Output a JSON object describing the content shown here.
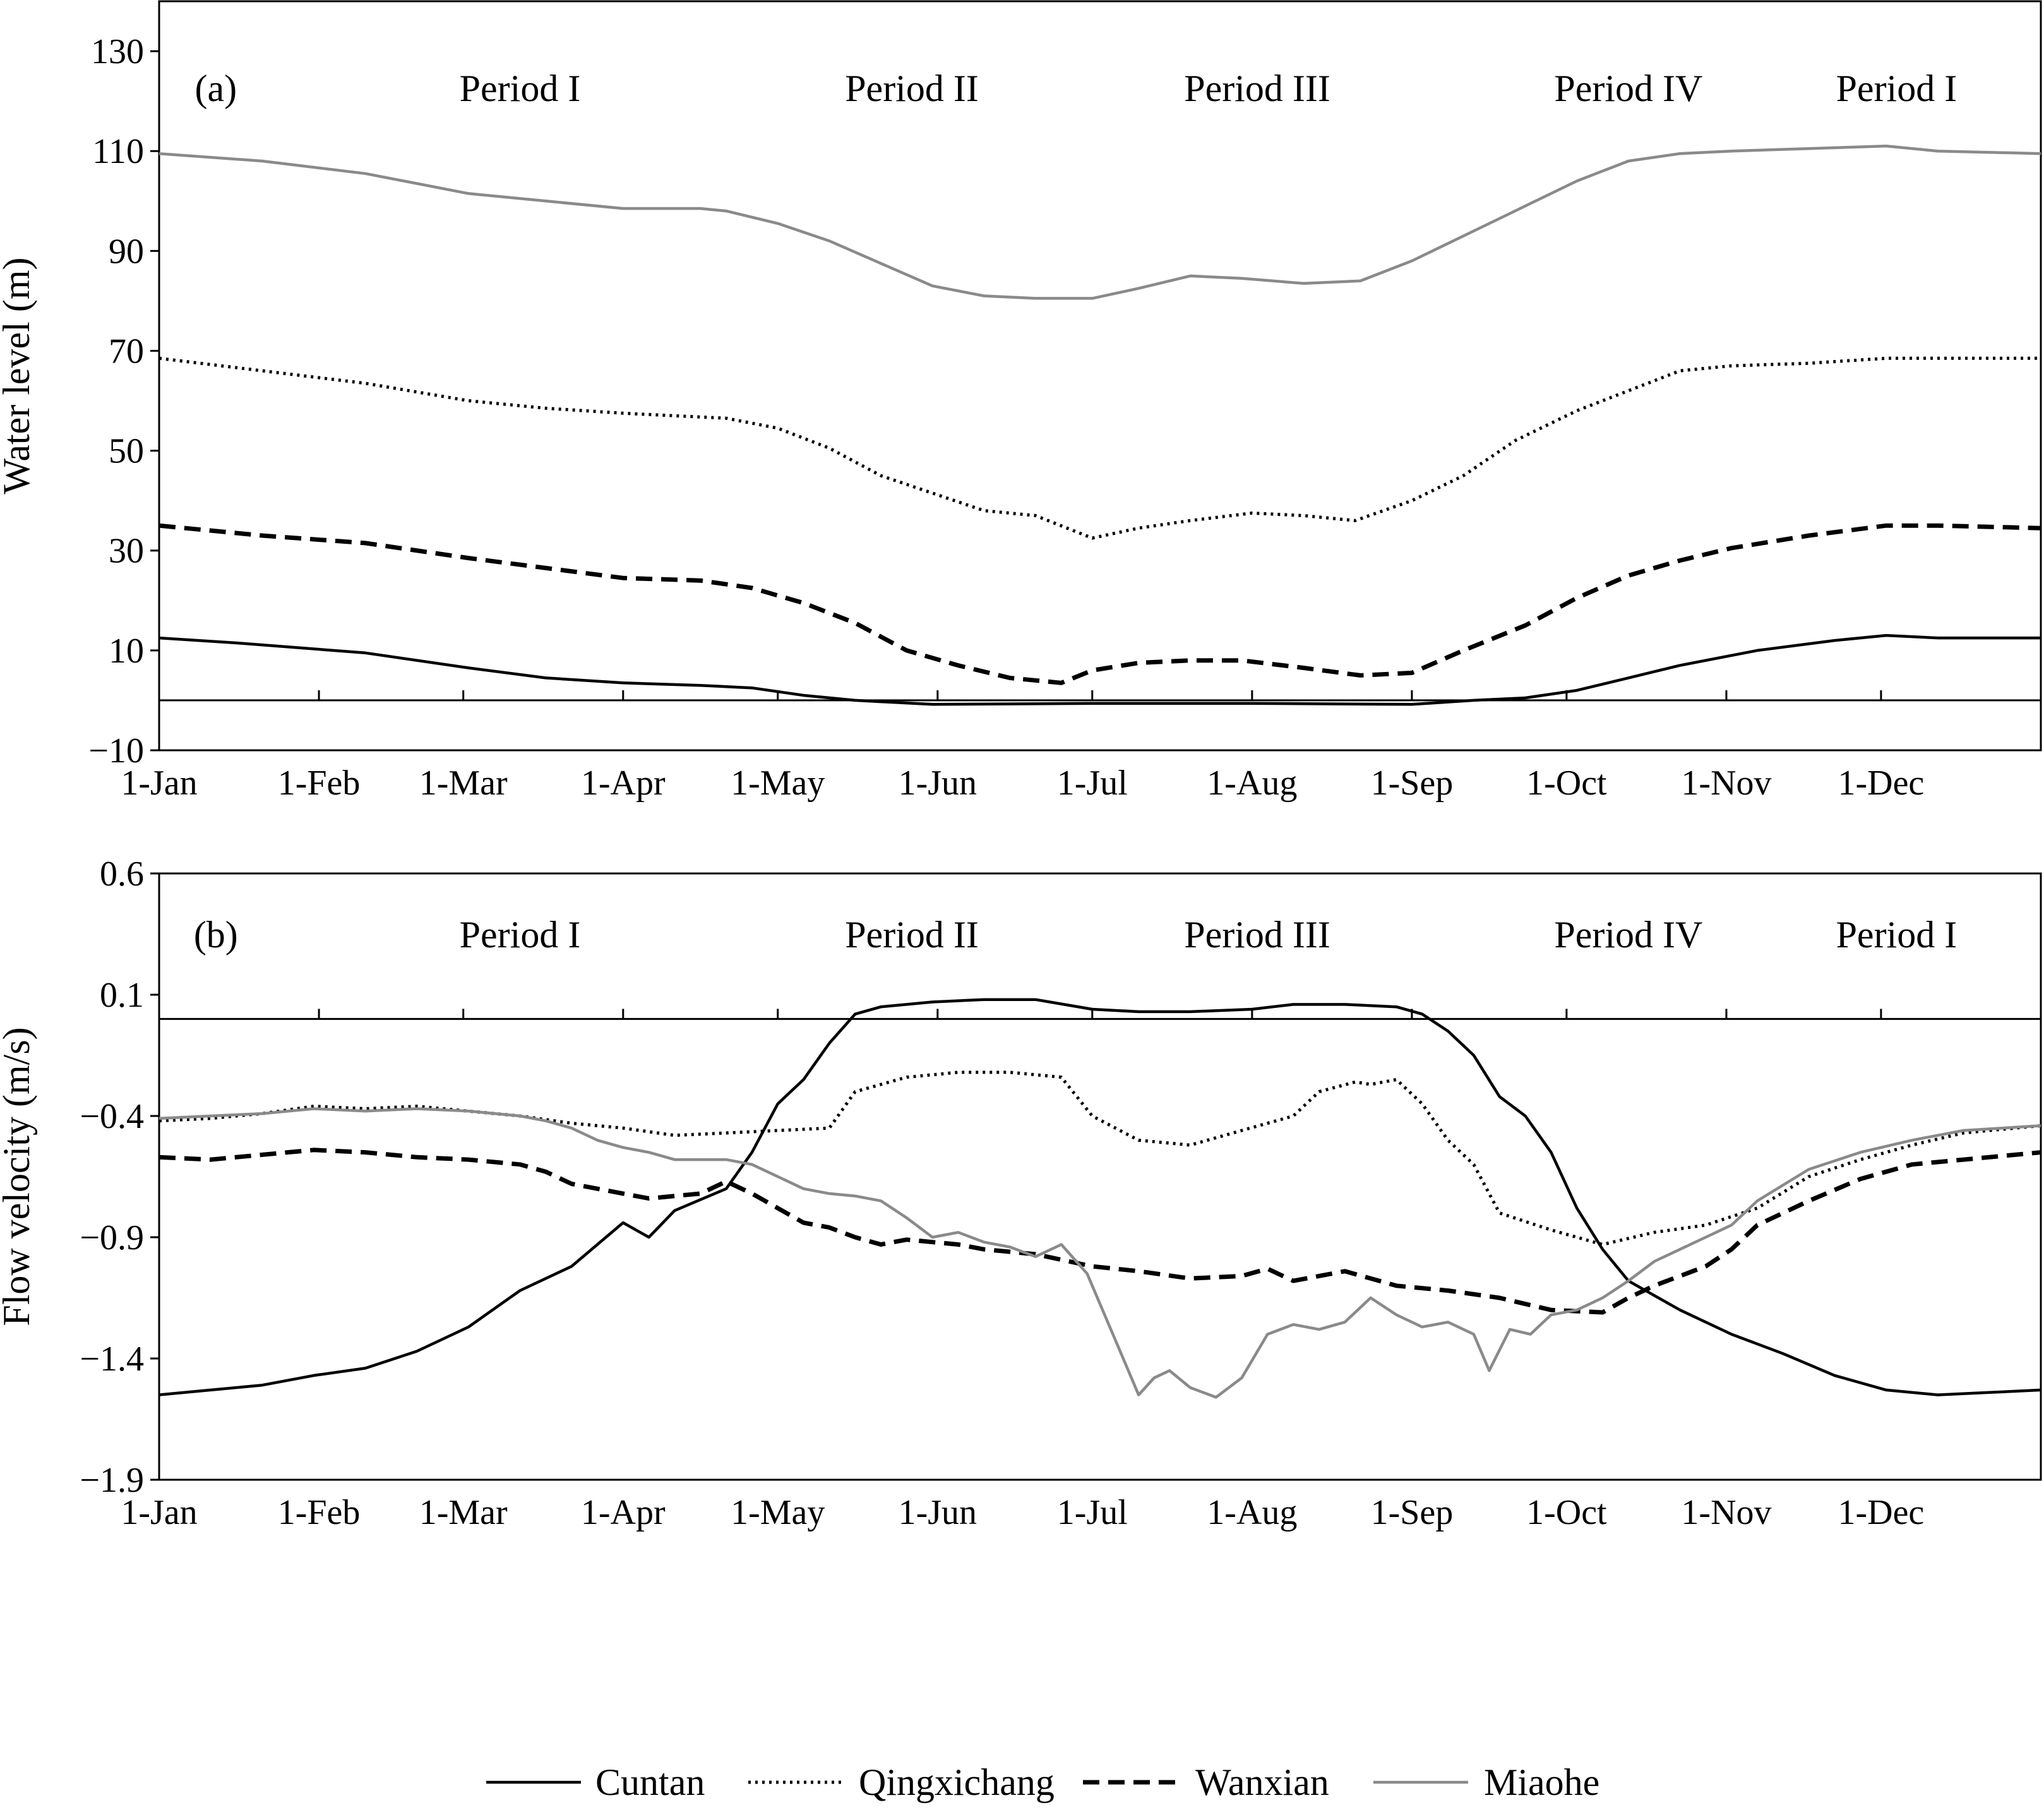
{
  "chart_data": [
    {
      "type": "line",
      "panel_label": "(a)",
      "xlabel": "",
      "ylabel": "Water level (m)",
      "ylim": [
        -10,
        140
      ],
      "yticks": [
        -10,
        10,
        30,
        50,
        70,
        90,
        110,
        130
      ],
      "ytick_labels": [
        "−10",
        "10",
        "30",
        "50",
        "70",
        "90",
        "110",
        "130"
      ],
      "x_domain": [
        0,
        365
      ],
      "xticks": [
        0,
        31,
        59,
        90,
        120,
        151,
        181,
        212,
        243,
        273,
        304,
        334
      ],
      "xtick_labels": [
        "1-Jan",
        "1-Feb",
        "1-Mar",
        "1-Apr",
        "1-May",
        "1-Jun",
        "1-Jul",
        "1-Aug",
        "1-Sep",
        "1-Oct",
        "1-Nov",
        "1-Dec"
      ],
      "reference_line_y": 0,
      "grid": false,
      "periods": [
        {
          "label": "Period I",
          "x": 70
        },
        {
          "label": "Period II",
          "x": 146
        },
        {
          "label": "Period III",
          "x": 213
        },
        {
          "label": "Period IV",
          "x": 285
        },
        {
          "label": "Period I",
          "x": 337
        }
      ],
      "series": [
        {
          "name": "Cuntan",
          "style": "solid-black",
          "x": [
            0,
            15,
            40,
            60,
            75,
            90,
            105,
            115,
            125,
            135,
            150,
            181,
            212,
            243,
            255,
            265,
            275,
            285,
            295,
            310,
            325,
            335,
            345,
            365
          ],
          "y": [
            12.5,
            11.5,
            9.5,
            6.5,
            4.5,
            3.5,
            3,
            2.5,
            1,
            0,
            -0.8,
            -0.6,
            -0.6,
            -0.8,
            0,
            0.5,
            2,
            4.5,
            7,
            10,
            12,
            13,
            12.5,
            12.5
          ]
        },
        {
          "name": "Qingxichang",
          "style": "dotted-black",
          "x": [
            0,
            20,
            40,
            60,
            75,
            90,
            100,
            110,
            120,
            130,
            140,
            150,
            160,
            170,
            181,
            190,
            200,
            212,
            222,
            232,
            243,
            253,
            263,
            275,
            285,
            295,
            305,
            320,
            335,
            350,
            365
          ],
          "y": [
            68.5,
            66,
            63.5,
            60,
            58.5,
            57.5,
            57,
            56.5,
            54.5,
            50.5,
            45,
            41.5,
            38,
            37,
            32.5,
            34.5,
            36,
            37.5,
            37,
            36,
            40,
            45,
            52,
            58,
            62,
            66,
            67,
            67.5,
            68.5,
            68.5,
            68.5
          ]
        },
        {
          "name": "Wanxian",
          "style": "dashed-black",
          "x": [
            0,
            20,
            40,
            60,
            75,
            90,
            105,
            115,
            125,
            135,
            145,
            155,
            165,
            175,
            181,
            190,
            200,
            210,
            222,
            233,
            243,
            253,
            265,
            275,
            285,
            295,
            305,
            320,
            335,
            345,
            365
          ],
          "y": [
            35,
            33,
            31.5,
            28.5,
            26.5,
            24.5,
            24,
            22.5,
            19.5,
            15.5,
            10,
            7,
            4.5,
            3.5,
            6,
            7.5,
            8,
            8,
            6.5,
            5,
            5.5,
            10,
            15,
            20.5,
            25,
            28,
            30.5,
            33,
            35,
            35,
            34.5
          ]
        },
        {
          "name": "Miaohe",
          "style": "solid-gray",
          "x": [
            0,
            20,
            40,
            60,
            75,
            90,
            105,
            110,
            120,
            130,
            140,
            150,
            160,
            170,
            181,
            190,
            200,
            210,
            222,
            233,
            243,
            253,
            263,
            275,
            285,
            295,
            305,
            320,
            335,
            345,
            365
          ],
          "y": [
            109.5,
            108,
            105.5,
            101.5,
            100,
            98.5,
            98.5,
            98,
            95.5,
            92,
            87.5,
            83,
            81,
            80.5,
            80.5,
            82.5,
            85,
            84.5,
            83.5,
            84,
            88,
            93,
            98,
            104,
            108,
            109.5,
            110,
            110.5,
            111,
            110,
            109.5
          ]
        }
      ]
    },
    {
      "type": "line",
      "panel_label": "(b)",
      "xlabel": "",
      "ylabel": "Flow velocity (m/s)",
      "ylim": [
        -1.9,
        0.6
      ],
      "yticks": [
        -1.9,
        -1.4,
        -0.9,
        -0.4,
        0.1,
        0.6
      ],
      "ytick_labels": [
        "−1.9",
        "−1.4",
        "−0.9",
        "−0.4",
        "0.1",
        "0.6"
      ],
      "x_domain": [
        0,
        365
      ],
      "xticks": [
        0,
        31,
        59,
        90,
        120,
        151,
        181,
        212,
        243,
        273,
        304,
        334
      ],
      "xtick_labels": [
        "1-Jan",
        "1-Feb",
        "1-Mar",
        "1-Apr",
        "1-May",
        "1-Jun",
        "1-Jul",
        "1-Aug",
        "1-Sep",
        "1-Oct",
        "1-Nov",
        "1-Dec"
      ],
      "reference_line_y": 0,
      "grid": false,
      "periods": [
        {
          "label": "Period I",
          "x": 70
        },
        {
          "label": "Period II",
          "x": 146
        },
        {
          "label": "Period III",
          "x": 213
        },
        {
          "label": "Period IV",
          "x": 285
        },
        {
          "label": "Period I",
          "x": 337
        }
      ],
      "series": [
        {
          "name": "Cuntan",
          "style": "solid-black",
          "x": [
            0,
            10,
            20,
            30,
            40,
            50,
            60,
            70,
            80,
            90,
            95,
            100,
            110,
            115,
            120,
            125,
            130,
            135,
            140,
            150,
            160,
            170,
            181,
            190,
            200,
            212,
            220,
            230,
            240,
            245,
            250,
            255,
            260,
            265,
            270,
            275,
            280,
            285,
            295,
            305,
            315,
            325,
            335,
            345,
            355,
            365
          ],
          "y": [
            -1.55,
            -1.53,
            -1.51,
            -1.47,
            -1.44,
            -1.37,
            -1.27,
            -1.12,
            -1.02,
            -0.84,
            -0.9,
            -0.79,
            -0.7,
            -0.55,
            -0.35,
            -0.25,
            -0.1,
            0.02,
            0.05,
            0.07,
            0.08,
            0.08,
            0.04,
            0.03,
            0.03,
            0.04,
            0.06,
            0.06,
            0.05,
            0.02,
            -0.05,
            -0.15,
            -0.32,
            -0.4,
            -0.55,
            -0.78,
            -0.95,
            -1.08,
            -1.2,
            -1.3,
            -1.38,
            -1.47,
            -1.53,
            -1.55,
            -1.54,
            -1.53
          ]
        },
        {
          "name": "Qingxichang",
          "style": "dotted-black",
          "x": [
            0,
            10,
            20,
            30,
            40,
            50,
            60,
            70,
            80,
            90,
            100,
            110,
            120,
            130,
            135,
            145,
            155,
            165,
            170,
            175,
            181,
            190,
            200,
            210,
            220,
            225,
            232,
            235,
            240,
            245,
            250,
            255,
            260,
            270,
            280,
            290,
            300,
            310,
            320,
            330,
            340,
            350,
            365
          ],
          "y": [
            -0.42,
            -0.41,
            -0.39,
            -0.36,
            -0.37,
            -0.36,
            -0.38,
            -0.4,
            -0.43,
            -0.45,
            -0.48,
            -0.47,
            -0.46,
            -0.45,
            -0.3,
            -0.24,
            -0.22,
            -0.22,
            -0.23,
            -0.24,
            -0.4,
            -0.5,
            -0.52,
            -0.46,
            -0.4,
            -0.3,
            -0.26,
            -0.27,
            -0.25,
            -0.35,
            -0.5,
            -0.6,
            -0.8,
            -0.87,
            -0.93,
            -0.88,
            -0.85,
            -0.78,
            -0.65,
            -0.58,
            -0.52,
            -0.47,
            -0.44
          ]
        },
        {
          "name": "Wanxian",
          "style": "dashed-black",
          "x": [
            0,
            10,
            20,
            30,
            40,
            50,
            60,
            70,
            75,
            80,
            85,
            90,
            95,
            100,
            105,
            110,
            115,
            120,
            125,
            130,
            135,
            140,
            145,
            150,
            155,
            160,
            170,
            181,
            190,
            200,
            210,
            215,
            220,
            225,
            230,
            240,
            250,
            260,
            270,
            280,
            285,
            290,
            295,
            300,
            305,
            310,
            320,
            330,
            340,
            350,
            365
          ],
          "y": [
            -0.57,
            -0.58,
            -0.56,
            -0.54,
            -0.55,
            -0.57,
            -0.58,
            -0.6,
            -0.63,
            -0.68,
            -0.7,
            -0.72,
            -0.74,
            -0.73,
            -0.72,
            -0.67,
            -0.72,
            -0.78,
            -0.84,
            -0.86,
            -0.9,
            -0.93,
            -0.91,
            -0.92,
            -0.93,
            -0.95,
            -0.97,
            -1.02,
            -1.04,
            -1.07,
            -1.06,
            -1.03,
            -1.08,
            -1.06,
            -1.04,
            -1.1,
            -1.12,
            -1.15,
            -1.2,
            -1.21,
            -1.15,
            -1.1,
            -1.06,
            -1.02,
            -0.95,
            -0.85,
            -0.75,
            -0.66,
            -0.6,
            -0.58,
            -0.55
          ]
        },
        {
          "name": "Miaohe",
          "style": "solid-gray",
          "x": [
            0,
            10,
            20,
            30,
            40,
            50,
            60,
            70,
            75,
            80,
            85,
            90,
            95,
            100,
            110,
            115,
            120,
            125,
            130,
            135,
            140,
            145,
            150,
            155,
            160,
            165,
            170,
            175,
            180,
            183,
            186,
            190,
            193,
            196,
            200,
            205,
            210,
            215,
            220,
            225,
            230,
            235,
            240,
            245,
            250,
            255,
            258,
            262,
            266,
            270,
            275,
            280,
            285,
            290,
            295,
            300,
            305,
            310,
            320,
            330,
            340,
            350,
            365
          ],
          "y": [
            -0.41,
            -0.4,
            -0.39,
            -0.37,
            -0.38,
            -0.37,
            -0.38,
            -0.4,
            -0.42,
            -0.45,
            -0.5,
            -0.53,
            -0.55,
            -0.58,
            -0.58,
            -0.6,
            -0.65,
            -0.7,
            -0.72,
            -0.73,
            -0.75,
            -0.82,
            -0.9,
            -0.88,
            -0.92,
            -0.94,
            -0.98,
            -0.93,
            -1.05,
            -1.2,
            -1.35,
            -1.55,
            -1.48,
            -1.45,
            -1.52,
            -1.56,
            -1.48,
            -1.3,
            -1.26,
            -1.28,
            -1.25,
            -1.15,
            -1.22,
            -1.27,
            -1.25,
            -1.3,
            -1.45,
            -1.28,
            -1.3,
            -1.22,
            -1.2,
            -1.15,
            -1.08,
            -1.0,
            -0.95,
            -0.9,
            -0.85,
            -0.75,
            -0.62,
            -0.55,
            -0.5,
            -0.46,
            -0.44
          ]
        }
      ]
    }
  ],
  "legend": [
    {
      "label": "Cuntan",
      "style": "solid-black"
    },
    {
      "label": "Qingxichang",
      "style": "dotted-black"
    },
    {
      "label": "Wanxian",
      "style": "dashed-black"
    },
    {
      "label": "Miaohe",
      "style": "solid-gray"
    }
  ],
  "colors": {
    "primary": "#000000",
    "gray_series": "#8a8a8a"
  }
}
